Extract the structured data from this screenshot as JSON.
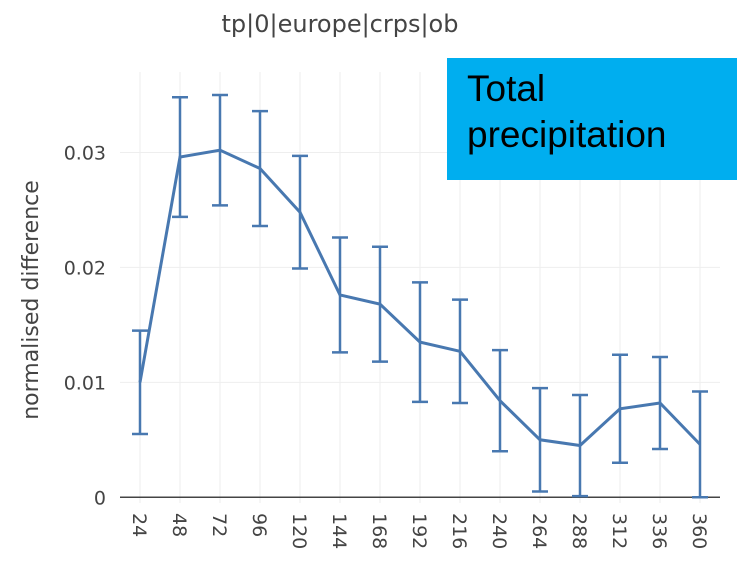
{
  "chart_data": {
    "type": "line",
    "title": "tp|0|europe|crps|ob",
    "y_label": "normalised difference",
    "annotation": "Total precipitation",
    "categories": [
      "24",
      "48",
      "72",
      "96",
      "120",
      "144",
      "168",
      "192",
      "216",
      "240",
      "264",
      "288",
      "312",
      "336",
      "360"
    ],
    "series": [
      {
        "color": "#4878b0",
        "values": [
          0.01,
          0.0296,
          0.0302,
          0.0286,
          0.0248,
          0.0176,
          0.0168,
          0.0135,
          0.0127,
          0.0084,
          0.005,
          0.0045,
          0.0077,
          0.0082,
          0.0046
        ],
        "errors": [
          0.0045,
          0.0052,
          0.0048,
          0.005,
          0.0049,
          0.005,
          0.005,
          0.0052,
          0.0045,
          0.0044,
          0.0045,
          0.0044,
          0.0047,
          0.004,
          0.0046
        ]
      }
    ],
    "ylim": [
      -0.0005,
      0.037
    ],
    "yticks": [
      0,
      0.01,
      0.02,
      0.03
    ],
    "grid": true
  }
}
